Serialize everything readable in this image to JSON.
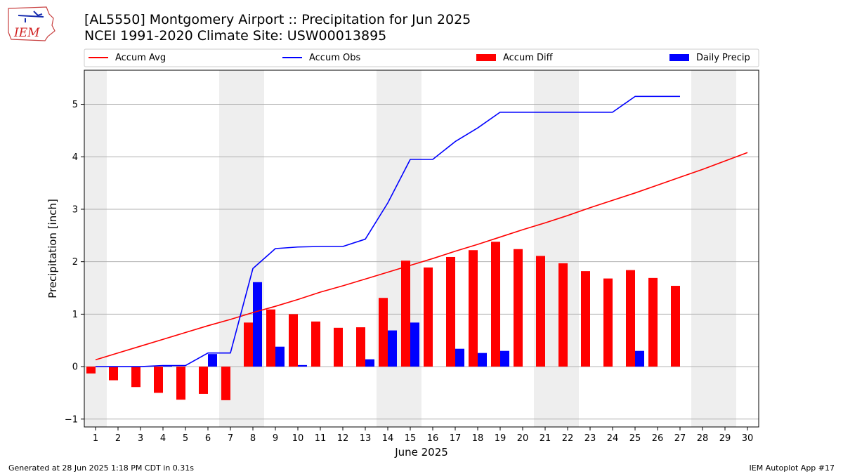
{
  "title_line1": "[AL5550] Montgomery Airport :: Precipitation for Jun 2025",
  "title_line2": "NCEI 1991-2020 Climate Site: USW00013895",
  "footer_left": "Generated at 28 Jun 2025 1:18 PM CDT in 0.31s",
  "footer_right": "IEM Autoplot App #17",
  "logo_text": "IEM",
  "colors": {
    "avg": "#ff0000",
    "obs": "#0000ff",
    "diff": "#ff0000",
    "daily": "#0000ff",
    "weekend": "#eeeeee",
    "grid": "#b0b0b0"
  },
  "chart_data": {
    "type": "bar",
    "xlabel": "June 2025",
    "ylabel": "Precipitation [inch]",
    "ylim": [
      -1.15,
      5.65
    ],
    "yticks": [
      -1,
      0,
      1,
      2,
      3,
      4,
      5
    ],
    "days": [
      1,
      2,
      3,
      4,
      5,
      6,
      7,
      8,
      9,
      10,
      11,
      12,
      13,
      14,
      15,
      16,
      17,
      18,
      19,
      20,
      21,
      22,
      23,
      24,
      25,
      26,
      27,
      28,
      29,
      30
    ],
    "weekend_days": [
      1,
      7,
      8,
      14,
      15,
      21,
      22,
      28,
      29
    ],
    "legend": [
      "Accum Avg",
      "Accum Obs",
      "Accum Diff",
      "Daily Precip"
    ],
    "legend_placement": "top",
    "grid": "horizontal",
    "series": [
      {
        "name": "Accum Avg",
        "kind": "line",
        "values": [
          0.13,
          0.26,
          0.39,
          0.52,
          0.65,
          0.78,
          0.9,
          1.03,
          1.15,
          1.28,
          1.42,
          1.54,
          1.67,
          1.8,
          1.93,
          2.06,
          2.2,
          2.33,
          2.47,
          2.61,
          2.74,
          2.88,
          3.03,
          3.17,
          3.31,
          3.46,
          3.61,
          3.76,
          3.92,
          4.08
        ]
      },
      {
        "name": "Accum Obs",
        "kind": "line",
        "values": [
          0.0,
          0.0,
          0.0,
          0.02,
          0.02,
          0.26,
          0.26,
          1.87,
          2.25,
          2.28,
          2.29,
          2.29,
          2.43,
          3.12,
          3.95,
          3.95,
          4.29,
          4.55,
          4.85,
          4.85,
          4.85,
          4.85,
          4.85,
          4.85,
          5.15,
          5.15,
          5.15
        ]
      },
      {
        "name": "Accum Diff",
        "kind": "bar",
        "values": [
          -0.13,
          -0.26,
          -0.39,
          -0.5,
          -0.63,
          -0.52,
          -0.64,
          0.84,
          1.09,
          1.0,
          0.86,
          0.74,
          0.75,
          1.31,
          2.02,
          1.89,
          2.09,
          2.22,
          2.38,
          2.24,
          2.11,
          1.97,
          1.82,
          1.68,
          1.84,
          1.69,
          1.54
        ]
      },
      {
        "name": "Daily Precip",
        "kind": "bar",
        "values": [
          0.0,
          0.0,
          0.0,
          0.02,
          0.0,
          0.24,
          0.0,
          1.61,
          0.38,
          0.03,
          0.0,
          0.0,
          0.14,
          0.69,
          0.84,
          0.0,
          0.34,
          0.26,
          0.3,
          0.0,
          0.0,
          0.0,
          0.0,
          0.0,
          0.3,
          0.0,
          0.0
        ]
      }
    ]
  }
}
